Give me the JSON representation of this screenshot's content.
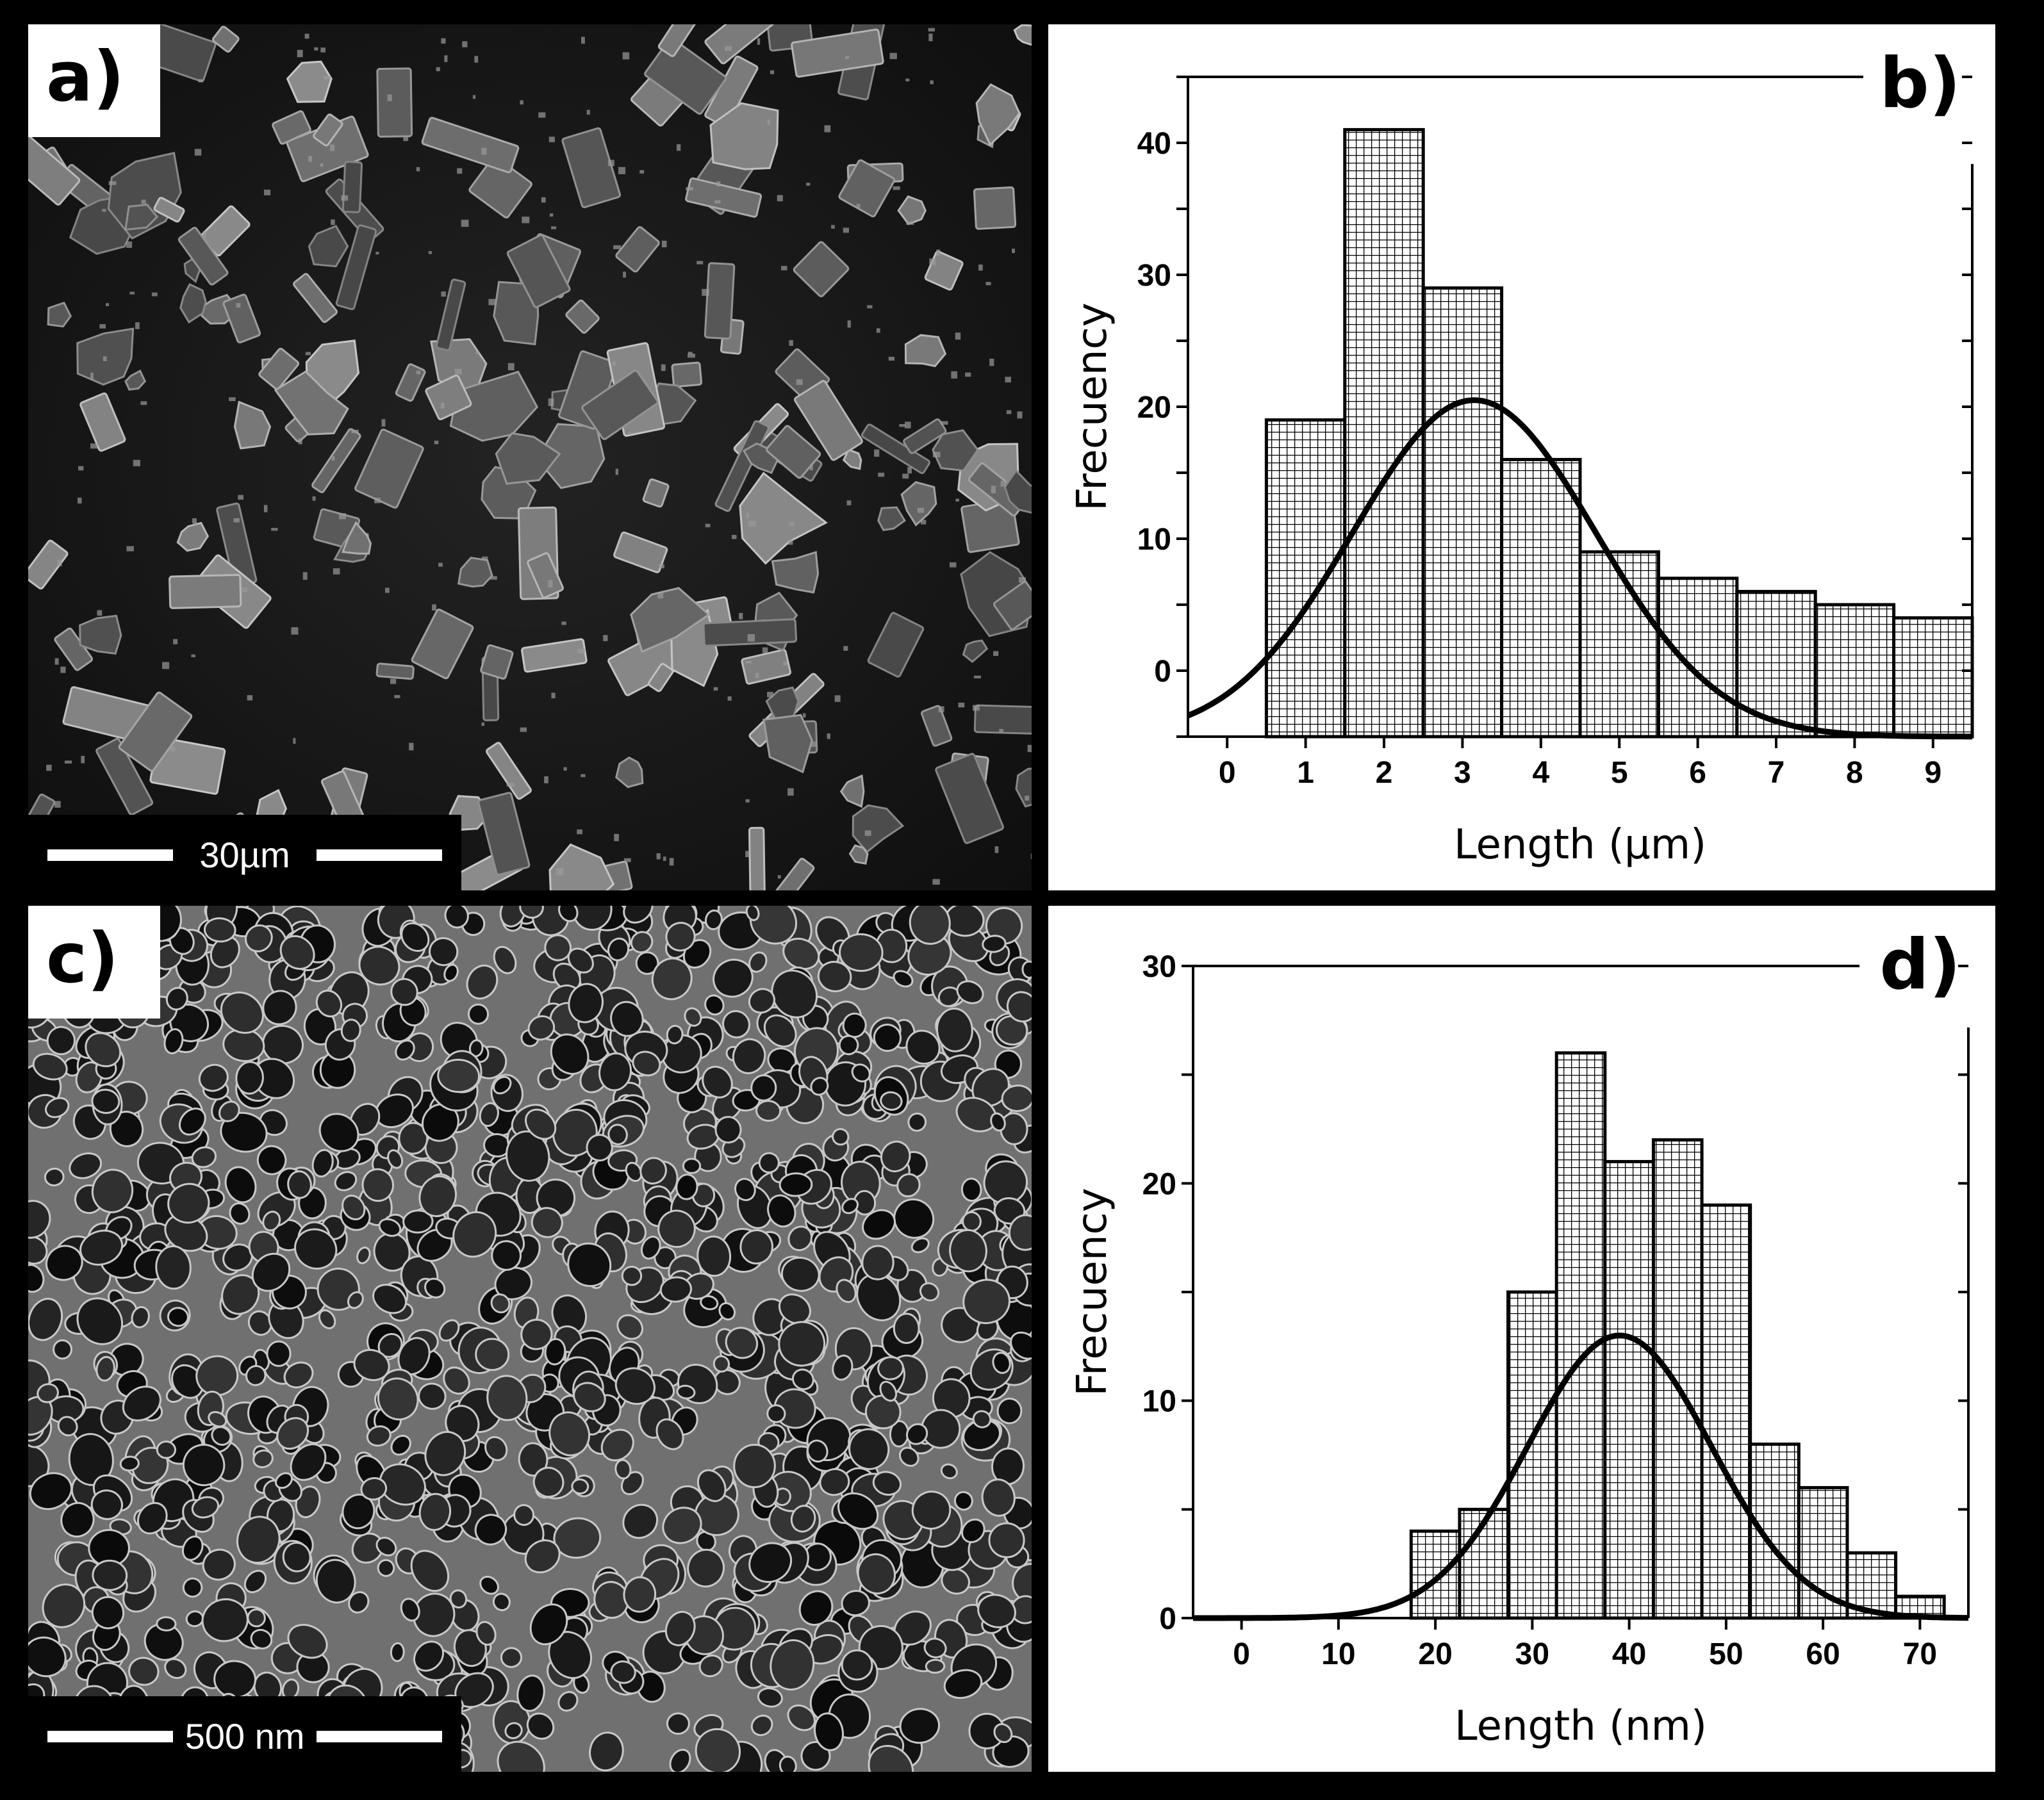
{
  "panels": {
    "a": {
      "letter": "a)",
      "scalebar": "30µm",
      "image": "SEM micrograph of rod-shaped and irregular crystals"
    },
    "c": {
      "letter": "c)",
      "scalebar": "500 nm",
      "image": "SEM micrograph of porous honeycomb network"
    },
    "b": {
      "letter": "b)"
    },
    "d": {
      "letter": "d)"
    }
  },
  "chart_data": [
    {
      "panel": "b",
      "type": "bar",
      "title": "",
      "xlabel": "Length (μm)",
      "ylabel": "Frecuency",
      "x": [
        1,
        2,
        3,
        4,
        5,
        6,
        7,
        8,
        9
      ],
      "bin_width": 1,
      "values": [
        19,
        41,
        29,
        16,
        9,
        7,
        6,
        5,
        4
      ],
      "fit": {
        "type": "gaussian",
        "mean": 3.15,
        "sd": 1.55,
        "peak": 20.5,
        "baseline": -5
      },
      "xlim": [
        -0.5,
        9.5
      ],
      "ylim": [
        -5,
        45
      ],
      "xticks": [
        0,
        1,
        2,
        3,
        4,
        5,
        6,
        7,
        8,
        9
      ],
      "yticks": [
        0,
        10,
        20,
        30,
        40
      ],
      "grid": false,
      "fill_pattern": "crosshatch"
    },
    {
      "panel": "d",
      "type": "bar",
      "title": "",
      "xlabel": "Length (nm)",
      "ylabel": "Frecuency",
      "x": [
        20,
        25,
        30,
        35,
        40,
        45,
        50,
        55,
        60,
        65,
        70
      ],
      "bin_width": 5,
      "values": [
        4,
        5,
        15,
        26,
        21,
        22,
        19,
        8,
        6,
        3,
        1
      ],
      "fit": {
        "type": "gaussian",
        "mean": 39,
        "sd": 9.5,
        "peak": 13,
        "baseline": 0
      },
      "xlim": [
        -5,
        75
      ],
      "ylim": [
        0,
        30
      ],
      "xticks": [
        0,
        10,
        20,
        30,
        40,
        50,
        60,
        70
      ],
      "yticks": [
        0,
        10,
        20,
        30
      ],
      "grid": false,
      "fill_pattern": "crosshatch"
    }
  ]
}
